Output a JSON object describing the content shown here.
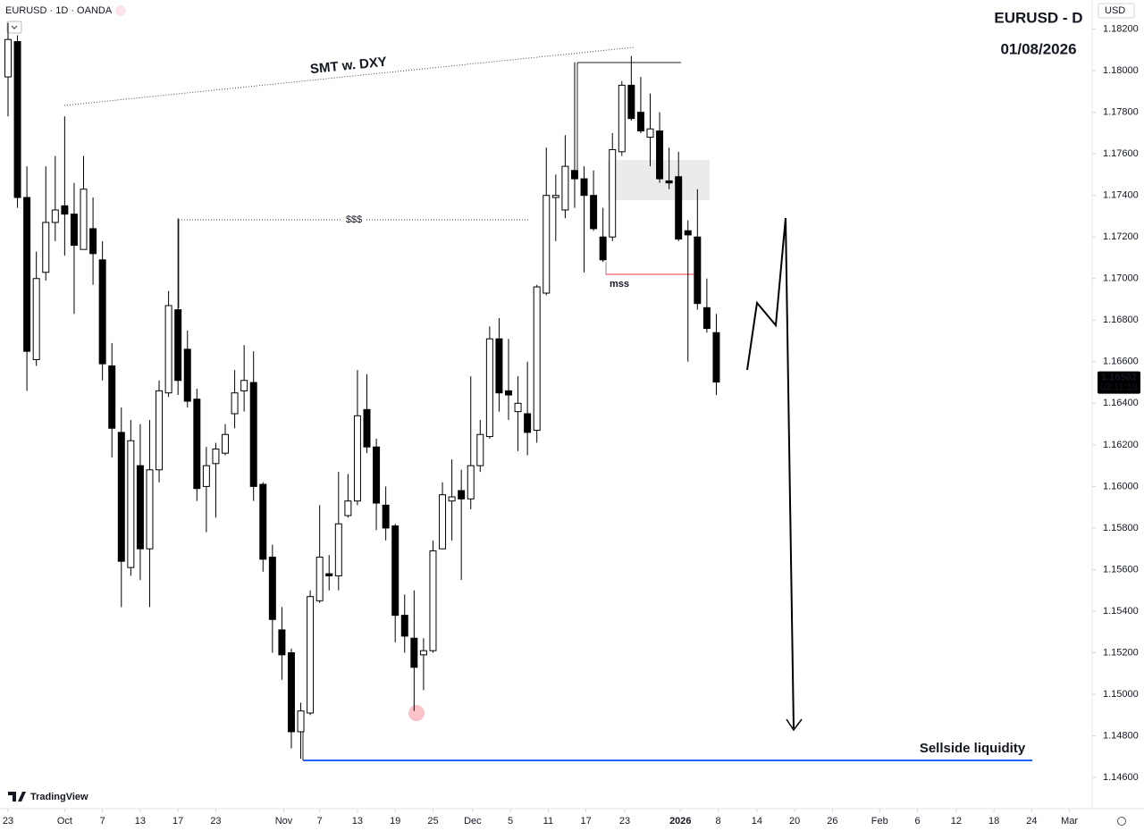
{
  "header": {
    "symbol": "EURUSD · 1D · OANDA",
    "currency": "USD",
    "brand": "TradingView"
  },
  "chart_data": {
    "type": "candlestick",
    "title": "EURUSD - D",
    "subtitle": "01/08/2026",
    "annotations": {
      "smt": "SMT w. DXY",
      "liquidity": "$$$",
      "mss": "mss",
      "sellside": "Sellside liquidity"
    },
    "up_color": "#ffffff",
    "down_color": "#000000",
    "grid": false,
    "ohlc": {
      "open": [
        1.1797,
        1.1814,
        1.1739,
        1.1661,
        1.1703,
        1.1727,
        1.1735,
        1.1731,
        1.1714,
        1.1724,
        1.1709,
        1.1658,
        1.1626,
        1.1561,
        1.161,
        1.157,
        1.1608,
        1.1645,
        1.1685,
        1.1666,
        1.1642,
        1.16,
        1.1611,
        1.1616,
        1.1635,
        1.1646,
        1.165,
        1.1601,
        1.1566,
        1.1531,
        1.152,
        1.1482,
        1.1491,
        1.1545,
        1.1558,
        1.1557,
        1.1586,
        1.1593,
        1.1637,
        1.1619,
        1.1591,
        1.1581,
        1.1538,
        1.1527,
        1.1519,
        1.1521,
        1.157,
        1.1593,
        1.1598,
        1.1594,
        1.161,
        1.1624,
        1.1671,
        1.1646,
        1.1636,
        1.1635,
        1.1627,
        1.1693,
        1.1739,
        1.1733,
        1.1752,
        1.1748,
        1.174,
        1.172,
        1.172,
        1.1761,
        1.1793,
        1.178,
        1.1768,
        1.1771,
        1.1747,
        1.1749,
        1.1723,
        1.172,
        1.1686,
        1.1674
      ],
      "high": [
        1.1823,
        1.1817,
        1.1754,
        1.1713,
        1.1754,
        1.1759,
        1.1778,
        1.1746,
        1.1759,
        1.1739,
        1.1718,
        1.1669,
        1.1638,
        1.1632,
        1.163,
        1.1632,
        1.1651,
        1.1694,
        1.1729,
        1.1675,
        1.1647,
        1.1619,
        1.1621,
        1.163,
        1.1656,
        1.1668,
        1.1665,
        1.1602,
        1.1572,
        1.1542,
        1.1522,
        1.1496,
        1.155,
        1.1591,
        1.1567,
        1.1607,
        1.1606,
        1.1656,
        1.1654,
        1.1623,
        1.16,
        1.1582,
        1.1548,
        1.155,
        1.1527,
        1.1574,
        1.1602,
        1.1613,
        1.1608,
        1.1653,
        1.1632,
        1.1677,
        1.1681,
        1.1671,
        1.1653,
        1.166,
        1.1697,
        1.1763,
        1.175,
        1.1769,
        1.1804,
        1.1754,
        1.1752,
        1.1734,
        1.177,
        1.1795,
        1.1807,
        1.1797,
        1.1789,
        1.178,
        1.1763,
        1.1761,
        1.1728,
        1.1743,
        1.17,
        1.1683
      ],
      "low": [
        1.1778,
        1.1734,
        1.1646,
        1.1658,
        1.1699,
        1.1718,
        1.1711,
        1.1683,
        1.1714,
        1.1697,
        1.1651,
        1.1614,
        1.1542,
        1.1557,
        1.1555,
        1.1542,
        1.1602,
        1.1643,
        1.1644,
        1.1638,
        1.1593,
        1.1578,
        1.1585,
        1.1615,
        1.1628,
        1.1636,
        1.1593,
        1.1559,
        1.152,
        1.1507,
        1.1474,
        1.1469,
        1.149,
        1.1544,
        1.155,
        1.155,
        1.1585,
        1.1591,
        1.1616,
        1.1579,
        1.1574,
        1.1525,
        1.152,
        1.1492,
        1.1502,
        1.152,
        1.157,
        1.1574,
        1.1555,
        1.1589,
        1.1607,
        1.1623,
        1.1636,
        1.1632,
        1.1617,
        1.1615,
        1.1621,
        1.1692,
        1.1718,
        1.1729,
        1.1734,
        1.1703,
        1.1723,
        1.1708,
        1.1718,
        1.1759,
        1.1776,
        1.177,
        1.1754,
        1.1746,
        1.1743,
        1.1718,
        1.166,
        1.1685,
        1.1674,
        1.1644
      ],
      "close": [
        1.1815,
        1.1739,
        1.1665,
        1.17,
        1.1727,
        1.1733,
        1.1731,
        1.1716,
        1.1743,
        1.1712,
        1.1659,
        1.1628,
        1.1564,
        1.1622,
        1.157,
        1.1608,
        1.1646,
        1.1687,
        1.1651,
        1.1641,
        1.1599,
        1.161,
        1.1618,
        1.1625,
        1.1645,
        1.1651,
        1.16,
        1.1565,
        1.1536,
        1.1519,
        1.1482,
        1.1492,
        1.1547,
        1.1566,
        1.1557,
        1.1582,
        1.1593,
        1.1634,
        1.1619,
        1.1592,
        1.158,
        1.1538,
        1.1528,
        1.1513,
        1.1521,
        1.1569,
        1.1596,
        1.1595,
        1.1594,
        1.161,
        1.1625,
        1.1671,
        1.1645,
        1.1644,
        1.164,
        1.1626,
        1.1696,
        1.174,
        1.174,
        1.1754,
        1.1748,
        1.174,
        1.1724,
        1.1709,
        1.1762,
        1.1793,
        1.1777,
        1.1771,
        1.1772,
        1.1748,
        1.1746,
        1.1719,
        1.1721,
        1.1688,
        1.1676,
        1.16502
      ]
    },
    "last_price": {
      "value": 1.16502,
      "label": "1.16502"
    },
    "countdown": "03:11:18",
    "xlim": [
      -0.85,
      114.8
    ],
    "xticks": [
      {
        "value": 0,
        "label": "23"
      },
      {
        "value": 6,
        "label": "Oct"
      },
      {
        "value": 10,
        "label": "7"
      },
      {
        "value": 14,
        "label": "13"
      },
      {
        "value": 18,
        "label": "17"
      },
      {
        "value": 22,
        "label": "23"
      },
      {
        "value": 29.2,
        "label": "Nov"
      },
      {
        "value": 33,
        "label": "7"
      },
      {
        "value": 37,
        "label": "13"
      },
      {
        "value": 41,
        "label": "19"
      },
      {
        "value": 45,
        "label": "25"
      },
      {
        "value": 49.2,
        "label": "Dec"
      },
      {
        "value": 53.2,
        "label": "5"
      },
      {
        "value": 57.2,
        "label": "11"
      },
      {
        "value": 61.2,
        "label": "17"
      },
      {
        "value": 65.3,
        "label": "23"
      },
      {
        "value": 71.2,
        "label": "2026"
      },
      {
        "value": 75.2,
        "label": "8"
      },
      {
        "value": 79.3,
        "label": "14"
      },
      {
        "value": 83.3,
        "label": "20"
      },
      {
        "value": 87.3,
        "label": "26"
      },
      {
        "value": 92.3,
        "label": "Feb"
      },
      {
        "value": 96.3,
        "label": "6"
      },
      {
        "value": 100.4,
        "label": "12"
      },
      {
        "value": 104.4,
        "label": "18"
      },
      {
        "value": 108.4,
        "label": "24"
      },
      {
        "value": 112.4,
        "label": "Mar"
      }
    ],
    "ylim": [
      1.1445,
      1.1834
    ],
    "yticks": [
      {
        "value": 1.182,
        "label": "1.18200"
      },
      {
        "value": 1.18,
        "label": "1.18000"
      },
      {
        "value": 1.178,
        "label": "1.17800"
      },
      {
        "value": 1.176,
        "label": "1.17600"
      },
      {
        "value": 1.174,
        "label": "1.17400"
      },
      {
        "value": 1.172,
        "label": "1.17200"
      },
      {
        "value": 1.17,
        "label": "1.17000"
      },
      {
        "value": 1.168,
        "label": "1.16800"
      },
      {
        "value": 1.166,
        "label": "1.16600"
      },
      {
        "value": 1.164,
        "label": "1.16400"
      },
      {
        "value": 1.162,
        "label": "1.16200"
      },
      {
        "value": 1.16,
        "label": "1.16000"
      },
      {
        "value": 1.158,
        "label": "1.15800"
      },
      {
        "value": 1.156,
        "label": "1.15600"
      },
      {
        "value": 1.154,
        "label": "1.15400"
      },
      {
        "value": 1.152,
        "label": "1.15200"
      },
      {
        "value": 1.15,
        "label": "1.15000"
      },
      {
        "value": 1.148,
        "label": "1.14800"
      },
      {
        "value": 1.146,
        "label": "1.14600"
      }
    ]
  }
}
